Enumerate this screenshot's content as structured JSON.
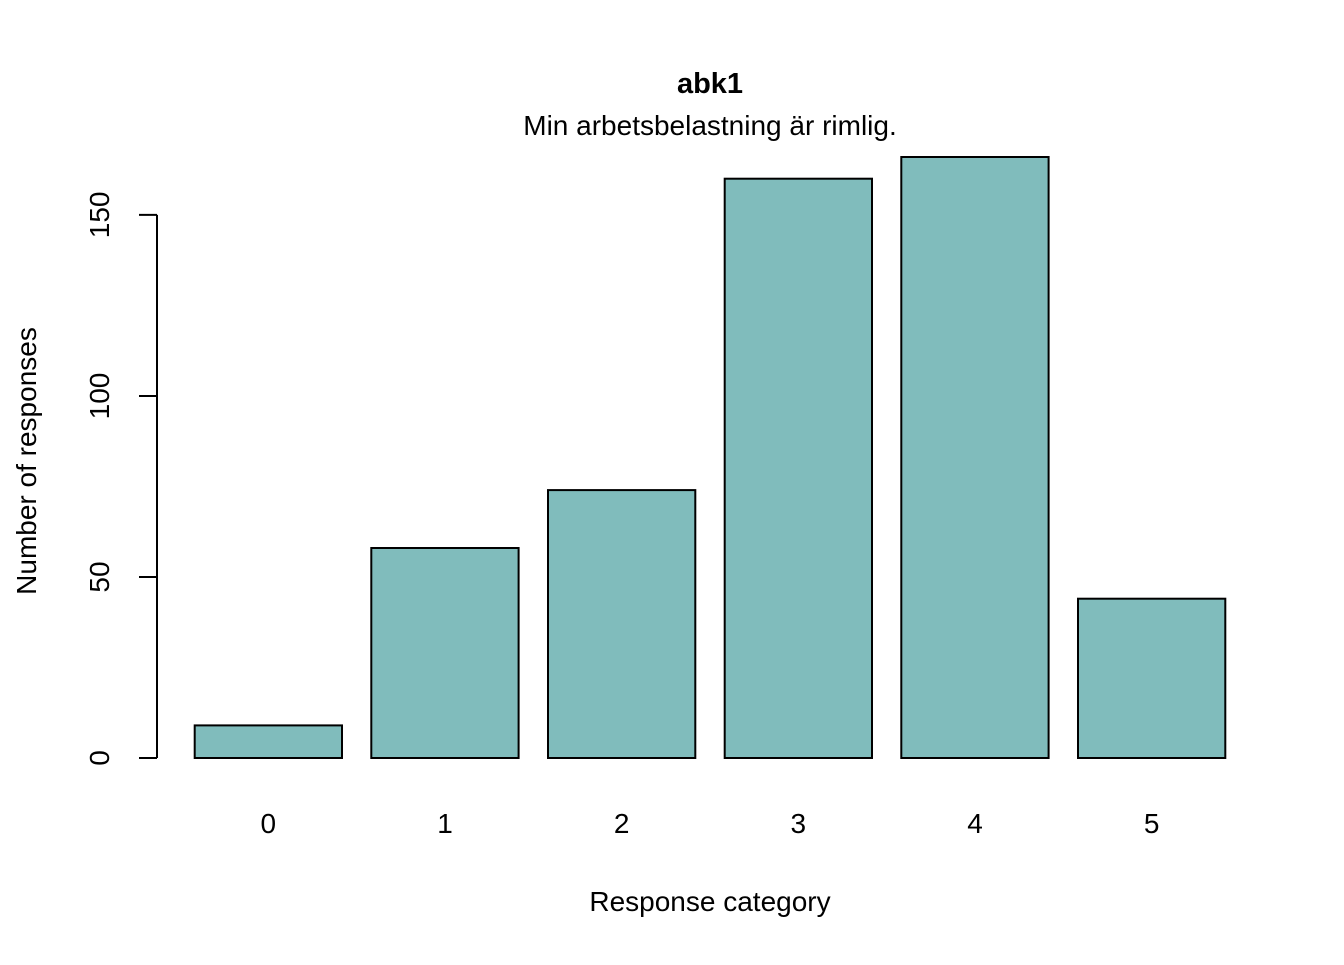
{
  "chart_data": {
    "type": "bar",
    "title": "abk1",
    "subtitle": "Min arbetsbelastning är rimlig.",
    "xlabel": "Response category",
    "ylabel": "Number of responses",
    "categories": [
      "0",
      "1",
      "2",
      "3",
      "4",
      "5"
    ],
    "values": [
      9,
      58,
      74,
      160,
      166,
      44
    ],
    "ylim": [
      0,
      166
    ],
    "yticks": [
      0,
      50,
      100,
      150
    ],
    "grid": false,
    "legend": "none",
    "bar_color": "#80BCBC",
    "bar_stroke": "#000000"
  }
}
